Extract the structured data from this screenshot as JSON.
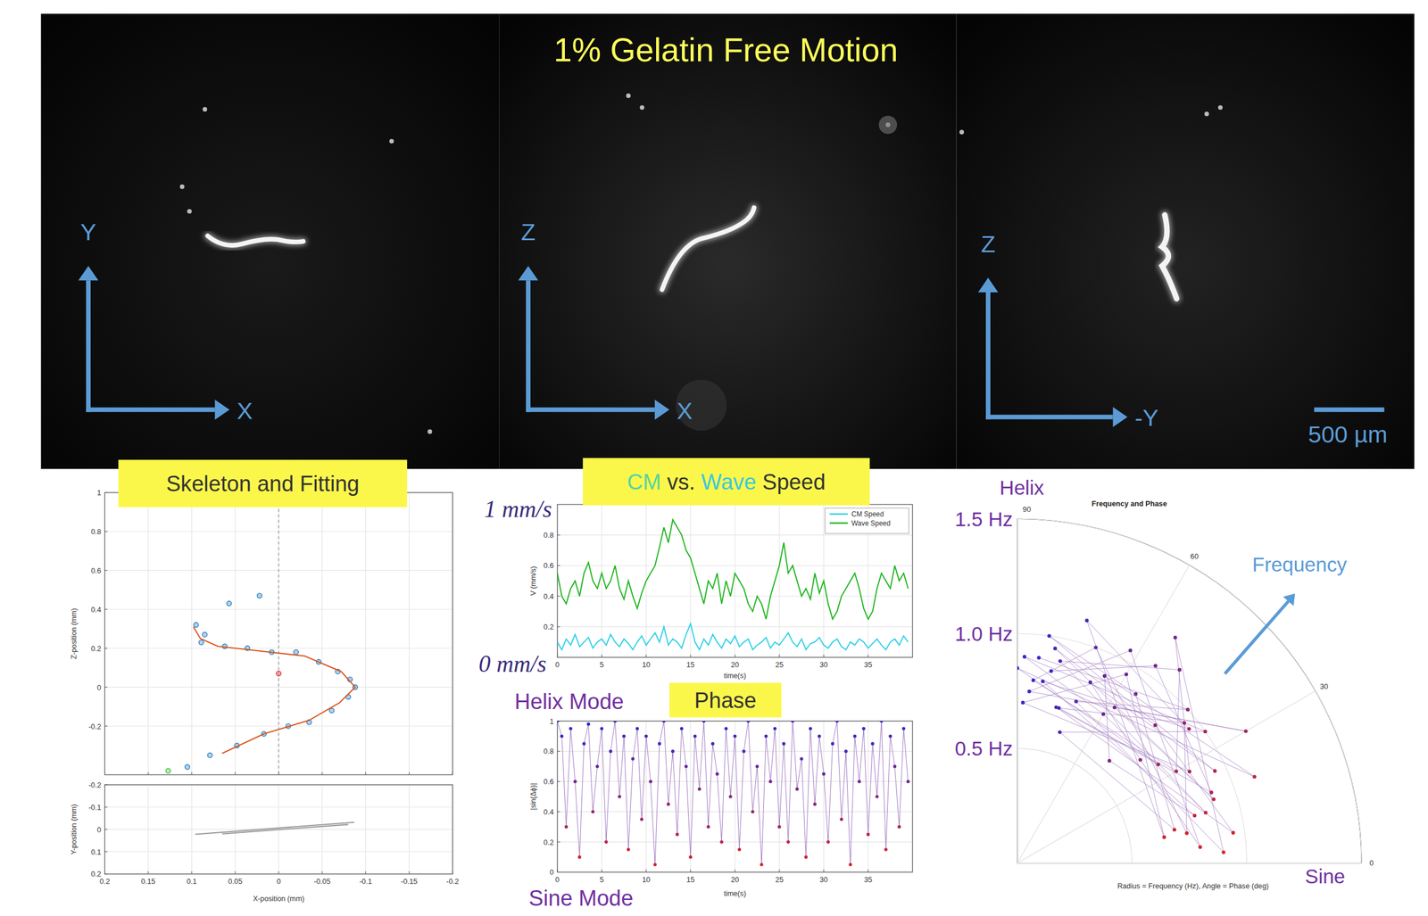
{
  "title": "1% Gelatin Free Motion",
  "image_panels": [
    {
      "x_axis": "X",
      "y_axis": "Y"
    },
    {
      "x_axis": "X",
      "y_axis": "Z"
    },
    {
      "x_axis": "-Y",
      "y_axis": "Z"
    }
  ],
  "scale_bar": "500 µm",
  "chart_data": [
    {
      "type": "scatter",
      "title": "Skeleton and Fitting",
      "ylabel": "Z-position (mm)",
      "xlim": [
        0.2,
        -0.2
      ],
      "xticks": [
        0.2,
        0.15,
        0.1,
        0.05,
        0,
        -0.05,
        -0.1,
        -0.15,
        -0.2
      ],
      "ylim": [
        -0.45,
        1
      ],
      "yticks": [
        -0.2,
        0,
        0.2,
        0.4,
        0.6,
        0.8,
        1
      ],
      "grid": true,
      "tick_labels": "y",
      "vline": 0,
      "series": [
        {
          "color": "#2a7fc0",
          "marker": "circle",
          "x": [
            0.022,
            0.057,
            0.095,
            0.085,
            0.089,
            0.062,
            0.036,
            0.008,
            -0.02,
            -0.046,
            -0.068,
            -0.082,
            -0.088,
            -0.08,
            -0.061,
            -0.035,
            -0.011,
            0.017,
            0.048,
            0.079,
            0.105
          ],
          "values": [
            0.47,
            0.43,
            0.32,
            0.27,
            0.23,
            0.21,
            0.2,
            0.18,
            0.18,
            0.13,
            0.08,
            0.04,
            0.0,
            -0.05,
            -0.12,
            -0.18,
            -0.2,
            -0.24,
            -0.3,
            -0.35,
            -0.41
          ]
        },
        {
          "color": "#d9541a",
          "line_style": "solid",
          "x": [
            0.065,
            0.017,
            -0.035,
            -0.07,
            -0.088,
            -0.072,
            -0.03,
            0.03,
            0.07,
            0.09,
            0.098
          ],
          "values": [
            -0.34,
            -0.24,
            -0.17,
            -0.08,
            0.0,
            0.08,
            0.16,
            0.19,
            0.21,
            0.25,
            0.31
          ]
        },
        {
          "color": "#e52a2a",
          "marker": "circle",
          "x": [
            0
          ],
          "values": [
            0.07
          ]
        },
        {
          "color": "#3cc43c",
          "marker": "circle",
          "x": [
            0.127
          ],
          "values": [
            -0.43
          ]
        }
      ]
    },
    {
      "type": "line",
      "xlabel": "X-position (mm)",
      "ylabel": "Y-position (mm)",
      "xlim": [
        0.2,
        -0.2
      ],
      "xticks": [
        0.2,
        0.15,
        0.1,
        0.05,
        0,
        -0.05,
        -0.1,
        -0.15,
        -0.2
      ],
      "ylim": [
        0.2,
        -0.2
      ],
      "yticks": [
        -0.2,
        -0.1,
        0,
        0.1,
        0.2
      ],
      "grid": true,
      "series": [
        {
          "color": "#9a9a9a",
          "line_style": "solid",
          "x": [
            0.096,
            -0.087
          ],
          "values": [
            0.022,
            -0.032
          ]
        },
        {
          "color": "#9a9a9a",
          "line_style": "solid",
          "x": [
            0.065,
            -0.08
          ],
          "values": [
            0.02,
            -0.022
          ]
        }
      ]
    },
    {
      "type": "line",
      "title": "CM vs. Wave Speed",
      "xlabel": "time(s)",
      "ylabel": "V (mm/s)",
      "x": [
        0,
        0.5,
        1,
        1.5,
        2,
        2.5,
        3,
        3.5,
        4,
        4.5,
        5,
        5.5,
        6,
        6.5,
        7,
        7.5,
        8,
        8.5,
        9,
        9.5,
        10,
        10.5,
        11,
        11.5,
        12,
        12.5,
        13,
        13.5,
        14,
        14.5,
        15,
        15.5,
        16,
        16.5,
        17,
        17.5,
        18,
        18.5,
        19,
        19.5,
        20,
        20.5,
        21,
        21.5,
        22,
        22.5,
        23,
        23.5,
        24,
        24.5,
        25,
        25.5,
        26,
        26.5,
        27,
        27.5,
        28,
        28.5,
        29,
        29.5,
        30,
        30.5,
        31,
        31.5,
        32,
        32.5,
        33,
        33.5,
        34,
        34.5,
        35,
        35.5,
        36,
        36.5,
        37,
        37.5,
        38,
        38.5,
        39,
        39.5
      ],
      "xlim": [
        0,
        40
      ],
      "xticks": [
        0,
        5,
        10,
        15,
        20,
        25,
        30,
        35
      ],
      "ylim": [
        0,
        1
      ],
      "yticks": [
        0.2,
        0.4,
        0.6,
        0.8
      ],
      "grid": true,
      "legend": "upper right",
      "annotations": [
        "1 mm/s",
        "0 mm/s"
      ],
      "series": [
        {
          "name": "CM Speed",
          "color": "#2fd0e8",
          "values": [
            0.1,
            0.05,
            0.12,
            0.08,
            0.15,
            0.07,
            0.1,
            0.13,
            0.06,
            0.1,
            0.12,
            0.08,
            0.15,
            0.1,
            0.07,
            0.12,
            0.09,
            0.05,
            0.1,
            0.14,
            0.08,
            0.12,
            0.16,
            0.1,
            0.2,
            0.08,
            0.12,
            0.1,
            0.06,
            0.15,
            0.22,
            0.1,
            0.05,
            0.12,
            0.08,
            0.15,
            0.1,
            0.06,
            0.12,
            0.09,
            0.14,
            0.07,
            0.1,
            0.12,
            0.05,
            0.08,
            0.1,
            0.13,
            0.06,
            0.1,
            0.08,
            0.12,
            0.16,
            0.1,
            0.07,
            0.12,
            0.05,
            0.09,
            0.1,
            0.13,
            0.08,
            0.06,
            0.1,
            0.12,
            0.07,
            0.05,
            0.1,
            0.08,
            0.12,
            0.1,
            0.06,
            0.09,
            0.12,
            0.08,
            0.05,
            0.1,
            0.12,
            0.08,
            0.14,
            0.1
          ]
        },
        {
          "name": "Wave Speed",
          "color": "#1fb51f",
          "values": [
            0.55,
            0.4,
            0.35,
            0.45,
            0.5,
            0.4,
            0.55,
            0.62,
            0.5,
            0.45,
            0.55,
            0.45,
            0.5,
            0.6,
            0.45,
            0.38,
            0.5,
            0.4,
            0.32,
            0.42,
            0.5,
            0.55,
            0.6,
            0.72,
            0.85,
            0.75,
            0.9,
            0.85,
            0.8,
            0.7,
            0.65,
            0.55,
            0.45,
            0.35,
            0.5,
            0.45,
            0.55,
            0.35,
            0.5,
            0.4,
            0.55,
            0.5,
            0.45,
            0.35,
            0.3,
            0.4,
            0.35,
            0.25,
            0.4,
            0.5,
            0.6,
            0.75,
            0.55,
            0.6,
            0.5,
            0.4,
            0.45,
            0.38,
            0.55,
            0.42,
            0.5,
            0.35,
            0.25,
            0.3,
            0.4,
            0.45,
            0.5,
            0.55,
            0.45,
            0.32,
            0.25,
            0.3,
            0.45,
            0.55,
            0.5,
            0.45,
            0.6,
            0.5,
            0.55,
            0.45
          ]
        }
      ]
    },
    {
      "type": "line",
      "title": "Phase",
      "xlabel": "time(s)",
      "ylabel": "|sin(Δϕ)|",
      "x": [
        0,
        0.5,
        1,
        1.5,
        2,
        2.5,
        3,
        3.5,
        4,
        4.5,
        5,
        5.5,
        6,
        6.5,
        7,
        7.5,
        8,
        8.5,
        9,
        9.5,
        10,
        10.5,
        11,
        11.5,
        12,
        12.5,
        13,
        13.5,
        14,
        14.5,
        15,
        15.5,
        16,
        16.5,
        17,
        17.5,
        18,
        18.5,
        19,
        19.5,
        20,
        20.5,
        21,
        21.5,
        22,
        22.5,
        23,
        23.5,
        24,
        24.5,
        25,
        25.5,
        26,
        26.5,
        27,
        27.5,
        28,
        28.5,
        29,
        29.5,
        30,
        30.5,
        31,
        31.5,
        32,
        32.5,
        33,
        33.5,
        34,
        34.5,
        35,
        35.5,
        36,
        36.5,
        37,
        37.5,
        38,
        38.5,
        39,
        39.5
      ],
      "xlim": [
        0,
        40
      ],
      "xticks": [
        0,
        5,
        10,
        15,
        20,
        25,
        30,
        35
      ],
      "ylim": [
        0,
        1
      ],
      "yticks": [
        0,
        0.2,
        0.4,
        0.6,
        0.8,
        1
      ],
      "grid": true,
      "annotations": [
        "Helix Mode",
        "Sine Mode"
      ],
      "series": [
        {
          "marker": "circle",
          "line_style": "solid",
          "values": [
            1,
            0.9,
            0.3,
            0.95,
            0.6,
            0.1,
            0.85,
            0.98,
            0.4,
            0.7,
            0.95,
            0.2,
            0.8,
            1,
            0.5,
            0.9,
            0.15,
            0.75,
            0.95,
            0.35,
            0.9,
            0.6,
            0.05,
            0.85,
            1,
            0.45,
            0.8,
            0.25,
            0.95,
            0.7,
            0.1,
            0.9,
            0.55,
            1,
            0.3,
            0.85,
            0.65,
            0.2,
            0.95,
            0.5,
            0.9,
            0.15,
            0.8,
            1,
            0.4,
            0.7,
            0.05,
            0.9,
            0.6,
            0.95,
            0.3,
            0.85,
            0.2,
            1,
            0.55,
            0.75,
            0.1,
            0.95,
            0.45,
            0.9,
            0.65,
            0.2,
            0.85,
            1,
            0.35,
            0.8,
            0.05,
            0.9,
            0.6,
            0.95,
            0.25,
            0.85,
            0.5,
            1,
            0.15,
            0.9,
            0.7,
            0.3,
            0.95,
            0.6
          ]
        }
      ]
    },
    {
      "type": "polar",
      "title": "Frequency and Phase",
      "caption": "Radius = Frequency (Hz), Angle = Phase (deg)",
      "rlim": [
        0,
        1.5
      ],
      "rticks": [
        {
          "value": 0.5,
          "label": "0.5 Hz"
        },
        {
          "value": 1.0,
          "label": "1.0 Hz"
        },
        {
          "value": 1.5,
          "label": "1.5 Hz"
        }
      ],
      "thetaticks": [
        0,
        30,
        60,
        90
      ],
      "grid": true,
      "annotations": [
        "Helix",
        "Sine",
        "Frequency"
      ],
      "series": [
        {
          "marker": "circle",
          "line_style": "solid",
          "theta": [
            80,
            55,
            20,
            75,
            40,
            10,
            70,
            85,
            30,
            50,
            78,
            15,
            60,
            88,
            35,
            72,
            12,
            55,
            82,
            25,
            68,
            40,
            5,
            62,
            86,
            30,
            58,
            18,
            80,
            45,
            8,
            76,
            35,
            90,
            20,
            65,
            48,
            15,
            82,
            38,
            74,
            10,
            60,
            88,
            28,
            55,
            3,
            70,
            42,
            84
          ],
          "values": [
            0.85,
            1.05,
            0.9,
            0.7,
            0.95,
            0.75,
            1.0,
            0.8,
            0.8,
            1.1,
            0.9,
            0.85,
            0.75,
            0.9,
            1.0,
            0.6,
            0.7,
            0.9,
            1.0,
            0.95,
            0.85,
            0.7,
            0.8,
            1.05,
            0.75,
            1.15,
            0.8,
            0.9,
            0.95,
            0.85,
            0.95,
            0.7,
            0.75,
            0.85,
            1.1,
            0.9,
            0.6,
            0.8,
            0.8,
            0.95,
            1.1,
            0.65,
            0.95,
            0.7,
            0.85,
            1.2,
            0.9,
            0.75,
            1.0,
            0.9
          ]
        }
      ]
    }
  ]
}
